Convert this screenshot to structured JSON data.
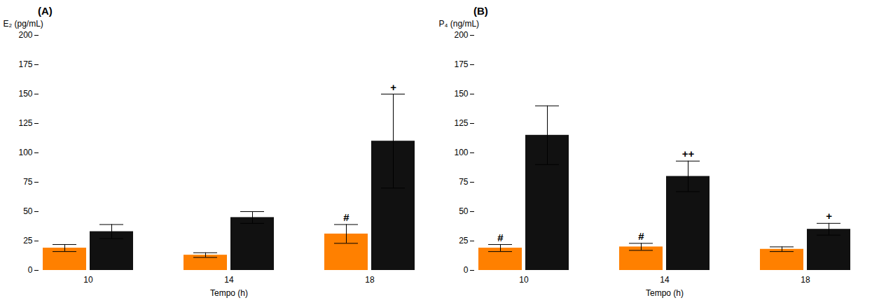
{
  "chart_data": [
    {
      "type": "bar",
      "title": "(A)",
      "xlabel": "Tempo (h)",
      "ylabel": "E₂ (pg/mL)",
      "categories": [
        "10",
        "14",
        "18"
      ],
      "series": [
        {
          "color": "#FF8000",
          "values": [
            19,
            13,
            31
          ],
          "errors": [
            3,
            2,
            8
          ],
          "annotations": [
            null,
            null,
            "#"
          ]
        },
        {
          "color": "#111111",
          "values": [
            33,
            45,
            110
          ],
          "errors": [
            6,
            5,
            40
          ],
          "annotations": [
            null,
            null,
            "+"
          ]
        }
      ],
      "ylim": [
        0,
        200
      ],
      "yticks": [
        0,
        25,
        50,
        75,
        100,
        125,
        150,
        175,
        200
      ],
      "grid": false
    },
    {
      "type": "bar",
      "title": "(B)",
      "xlabel": "Tempo (h)",
      "ylabel": "P₄ (ng/mL)",
      "categories": [
        "10",
        "14",
        "18"
      ],
      "series": [
        {
          "color": "#FF8000",
          "values": [
            19,
            20,
            18
          ],
          "errors": [
            3,
            3,
            2
          ],
          "annotations": [
            "#",
            "#",
            null
          ]
        },
        {
          "color": "#111111",
          "values": [
            115,
            80,
            35
          ],
          "errors": [
            25,
            13,
            5
          ],
          "annotations": [
            null,
            "++",
            "+"
          ]
        }
      ],
      "ylim": [
        0,
        200
      ],
      "yticks": [
        0,
        25,
        50,
        75,
        100,
        125,
        150,
        175,
        200
      ],
      "grid": false
    }
  ]
}
